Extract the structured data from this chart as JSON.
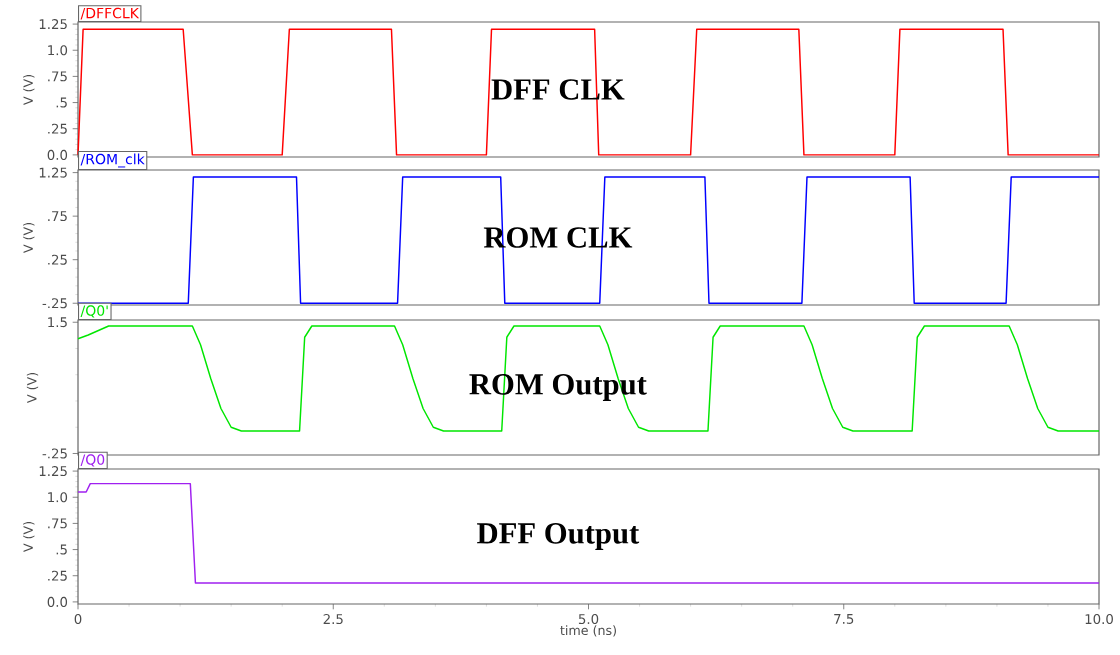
{
  "chart_data": [
    {
      "type": "line",
      "ylabel": "V (V)",
      "annotations": [
        "DFF CLK"
      ],
      "xlim": [
        0,
        10
      ],
      "ylim": [
        -0.02,
        1.27
      ],
      "tick_labels": "y",
      "yticks": [
        {
          "value": 0,
          "label": "0.0"
        },
        {
          "value": 0.25,
          "label": ".25"
        },
        {
          "value": 0.5,
          "label": ".5"
        },
        {
          "value": 0.75,
          "label": ".75"
        },
        {
          "value": 1,
          "label": "1.0"
        },
        {
          "value": 1.25,
          "label": "1.25"
        }
      ],
      "series": [
        {
          "name": "/DFFCLK",
          "color": "#ff0000",
          "x": [
            0,
            0.05,
            1.03,
            1.12,
            2.0,
            2.07,
            3.07,
            3.12,
            4.0,
            4.05,
            5.06,
            5.1,
            6.0,
            6.06,
            7.06,
            7.11,
            8.0,
            8.05,
            9.06,
            9.11,
            10
          ],
          "values": [
            0,
            1.2,
            1.2,
            0,
            0,
            1.2,
            1.2,
            0,
            0,
            1.2,
            1.2,
            0,
            0,
            1.2,
            1.2,
            0,
            0,
            1.2,
            1.2,
            0,
            0
          ]
        }
      ]
    },
    {
      "type": "line",
      "ylabel": "V (V)",
      "annotations": [
        "ROM CLK"
      ],
      "xlim": [
        0,
        10
      ],
      "ylim": [
        -0.27,
        1.28
      ],
      "tick_labels": "y",
      "yticks": [
        {
          "value": -0.25,
          "label": "-.25"
        },
        {
          "value": 0.25,
          "label": ".25"
        },
        {
          "value": 0.75,
          "label": ".75"
        },
        {
          "value": 1.25,
          "label": "1.25"
        }
      ],
      "series": [
        {
          "name": "/ROM_clk",
          "color": "#0000ff",
          "x": [
            0,
            1.08,
            1.13,
            2.14,
            2.18,
            3.13,
            3.18,
            4.14,
            4.18,
            5.11,
            5.16,
            6.14,
            6.18,
            7.09,
            7.14,
            8.15,
            8.19,
            9.09,
            9.14,
            10
          ],
          "values": [
            -0.25,
            -0.25,
            1.2,
            1.2,
            -0.25,
            -0.25,
            1.2,
            1.2,
            -0.25,
            -0.25,
            1.2,
            1.2,
            -0.25,
            -0.25,
            1.2,
            1.2,
            -0.25,
            -0.25,
            1.2,
            1.2
          ]
        }
      ]
    },
    {
      "type": "line",
      "ylabel": "V (V)",
      "annotations": [
        "ROM Output"
      ],
      "xlim": [
        0,
        10
      ],
      "ylim": [
        -0.27,
        1.53
      ],
      "tick_labels": "y",
      "yticks": [
        {
          "value": -0.25,
          "label": "-.25"
        },
        {
          "value": 1.5,
          "label": "1.5"
        }
      ],
      "series": [
        {
          "name": "/Q0'",
          "color": "#00e600",
          "x": [
            0,
            0.1,
            0.3,
            1.12,
            1.2,
            1.3,
            1.4,
            1.5,
            1.6,
            2.17,
            2.22,
            2.29,
            3.1,
            3.18,
            3.28,
            3.38,
            3.48,
            3.58,
            4.15,
            4.2,
            4.27,
            5.11,
            5.19,
            5.29,
            5.39,
            5.49,
            5.59,
            6.17,
            6.22,
            6.29,
            7.11,
            7.19,
            7.29,
            7.39,
            7.49,
            7.59,
            8.17,
            8.22,
            8.29,
            9.12,
            9.2,
            9.3,
            9.4,
            9.5,
            9.6,
            10
          ],
          "values": [
            1.28,
            1.33,
            1.45,
            1.45,
            1.2,
            0.75,
            0.35,
            0.1,
            0.05,
            0.05,
            1.3,
            1.45,
            1.45,
            1.2,
            0.75,
            0.35,
            0.1,
            0.05,
            0.05,
            1.3,
            1.45,
            1.45,
            1.2,
            0.75,
            0.35,
            0.1,
            0.05,
            0.05,
            1.3,
            1.45,
            1.45,
            1.2,
            0.75,
            0.35,
            0.1,
            0.05,
            0.05,
            1.3,
            1.45,
            1.45,
            1.2,
            0.75,
            0.35,
            0.1,
            0.05,
            0.05
          ]
        }
      ]
    },
    {
      "type": "line",
      "xlabel": "time (ns)",
      "ylabel": "V (V)",
      "annotations": [
        "DFF Output"
      ],
      "xlim": [
        0,
        10
      ],
      "ylim": [
        -0.02,
        1.27
      ],
      "xticks": [
        0,
        2.5,
        {
          "value": 5,
          "label": "5.0"
        },
        7.5,
        {
          "value": 10,
          "label": "10.0"
        }
      ],
      "yticks": [
        {
          "value": 0,
          "label": "0.0"
        },
        {
          "value": 0.25,
          "label": ".25"
        },
        {
          "value": 0.5,
          "label": ".5"
        },
        {
          "value": 0.75,
          "label": ".75"
        },
        {
          "value": 1,
          "label": "1.0"
        },
        {
          "value": 1.25,
          "label": "1.25"
        }
      ],
      "series": [
        {
          "name": "/Q0",
          "color": "#a020f0",
          "x": [
            0,
            0.08,
            0.12,
            1.1,
            1.15,
            10
          ],
          "values": [
            1.05,
            1.05,
            1.13,
            1.13,
            0.18,
            0.18
          ]
        }
      ]
    }
  ]
}
